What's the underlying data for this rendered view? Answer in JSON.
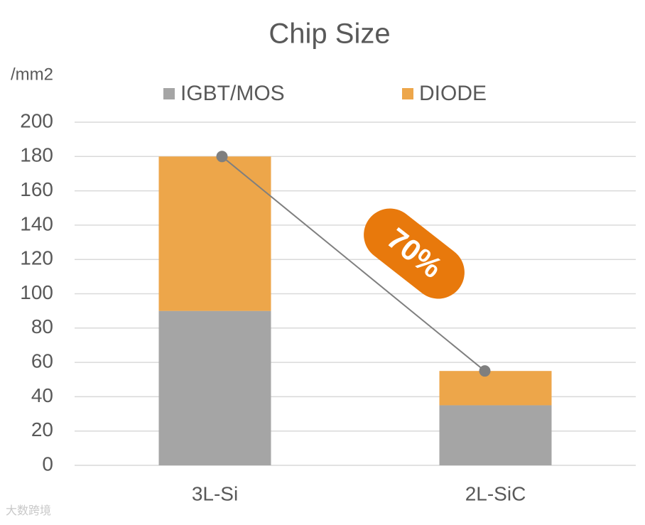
{
  "chart_data": {
    "type": "stacked_bar",
    "title": "Chip Size",
    "y_axis_label": "/mm2",
    "categories": [
      "3L-Si",
      "2L-SiC"
    ],
    "series": [
      {
        "name": "IGBT/MOS",
        "color": "#a5a5a5",
        "values": [
          90,
          35
        ]
      },
      {
        "name": "DIODE",
        "color": "#eda64a",
        "values": [
          90,
          20
        ]
      }
    ],
    "trend": {
      "values": [
        180,
        55
      ],
      "color": "#7f7f7f"
    },
    "annotation": "70%",
    "ylim": [
      0,
      200
    ],
    "yticks": [
      0,
      20,
      40,
      60,
      80,
      100,
      120,
      140,
      160,
      180,
      200
    ],
    "grid": true,
    "legend": "top",
    "watermark": "大数跨境"
  }
}
